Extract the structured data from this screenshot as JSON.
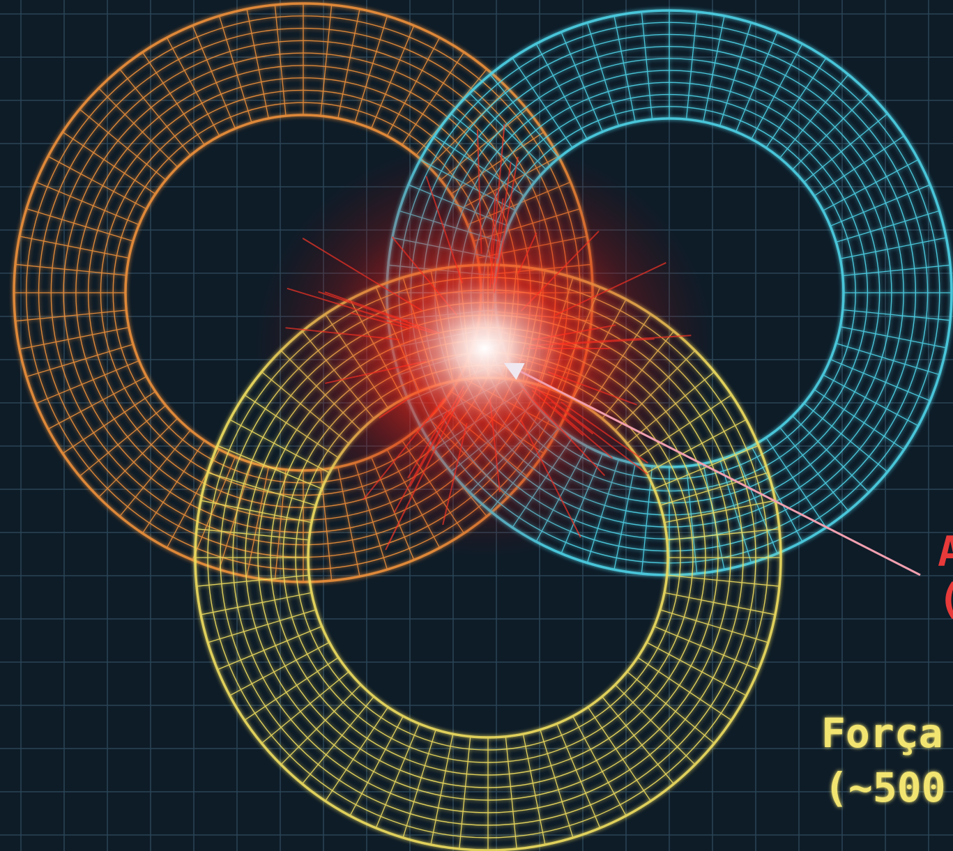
{
  "annotations": {
    "red_line_1": "A",
    "red_line_2": "(",
    "yellow_line_1": "Força",
    "yellow_line_2": "(~500"
  }
}
